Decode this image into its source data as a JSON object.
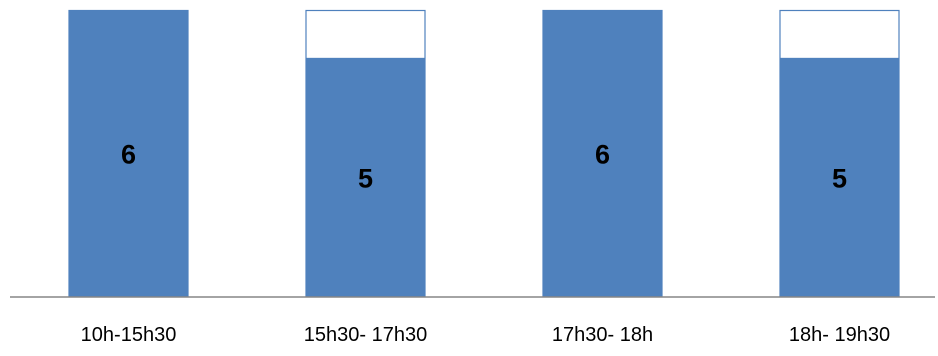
{
  "chart_data": {
    "type": "bar",
    "categories": [
      "10h-15h30",
      "15h30- 17h30",
      "17h30- 18h",
      "18h- 19h30"
    ],
    "series": [
      {
        "values": [
          6,
          5,
          6,
          5
        ]
      }
    ],
    "data_labels": [
      "6",
      "5",
      "6",
      "5"
    ],
    "capacity": [
      6,
      6,
      6,
      6
    ],
    "ylim": [
      0,
      6
    ],
    "title": "",
    "xlabel": "",
    "ylabel": "",
    "grid": false,
    "legend": "none"
  },
  "colors": {
    "bar_fill": "#4f81bd",
    "bar_outline": "#4f81bd",
    "axis": "#868686",
    "text": "#000000"
  }
}
